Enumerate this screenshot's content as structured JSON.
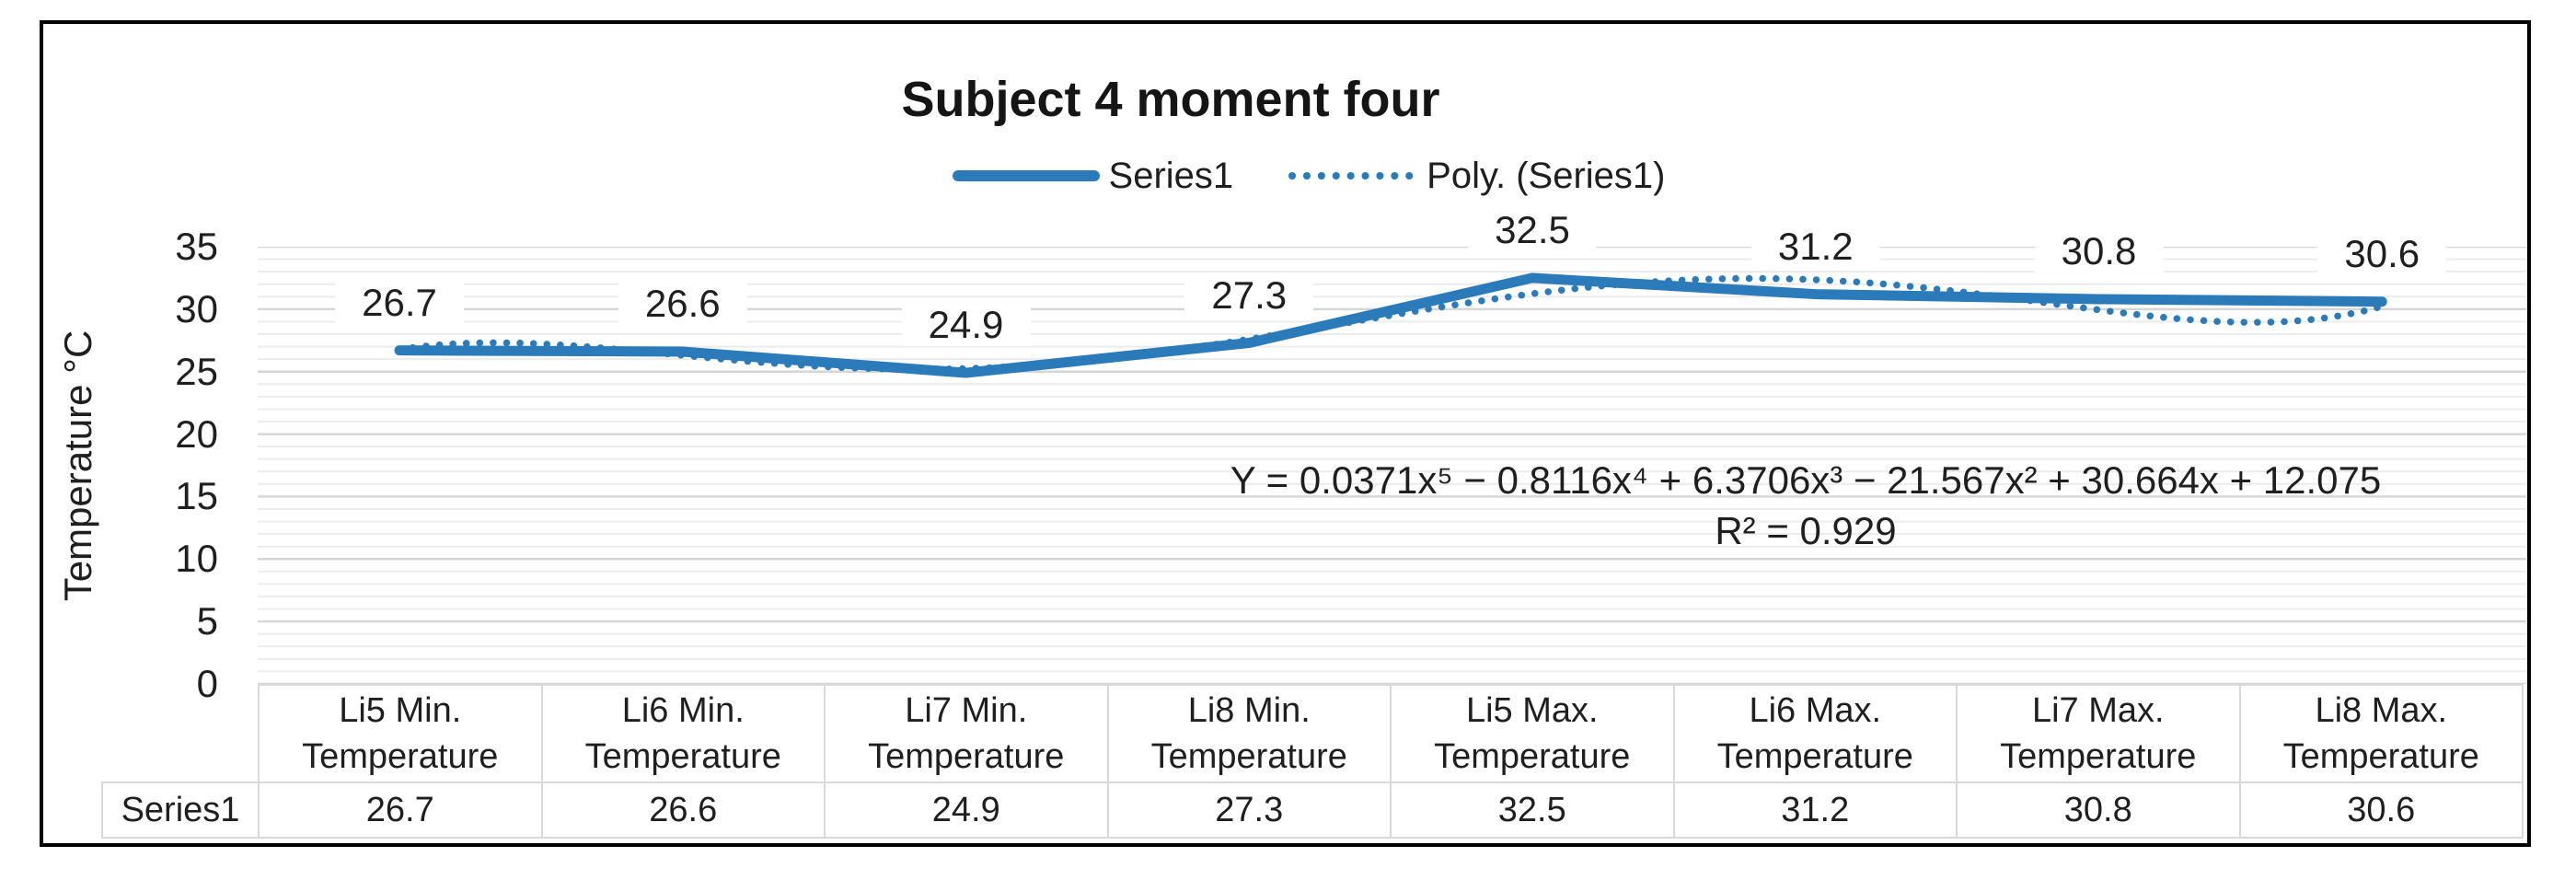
{
  "chart": {
    "title": "Subject 4 moment four",
    "y_axis": {
      "title": "Temperature °C",
      "tick_labels": [
        "35",
        "30",
        "25",
        "20",
        "15",
        "10",
        "5",
        "0"
      ],
      "min": 0,
      "max": 35,
      "major_unit": 5,
      "minor_unit": 1
    },
    "annotation": {
      "equation": "Y = 0.0371x⁵ − 0.8116x⁴ + 6.3706x³ − 21.567x² + 30.664x + 12.075",
      "r_squared": "R² = 0.929"
    },
    "colors": {
      "series_blue": "#2b7bba",
      "gridline_minor": "#ececec",
      "gridline_major": "#d6d6d6",
      "table_border": "#d9d9d9",
      "chart_border": "#000000"
    }
  },
  "chart_data": {
    "type": "line",
    "title": "Subject 4 moment four",
    "categories": [
      "Li5 Min. Temperature",
      "Li6 Min. Temperature",
      "Li7 Min. Temperature",
      "Li8 Min. Temperature",
      "Li5 Max. Temperature",
      "Li6 Max. Temperature",
      "Li7 Max. Temperature",
      "Li8 Max. Temperature"
    ],
    "series": [
      {
        "name": "Series1",
        "values": [
          26.7,
          26.6,
          24.9,
          27.3,
          32.5,
          31.2,
          30.8,
          30.6
        ]
      }
    ],
    "data_labels": [
      "26.7",
      "26.6",
      "24.9",
      "27.3",
      "32.5",
      "31.2",
      "30.8",
      "30.6"
    ],
    "trendline": {
      "name": "Poly. (Series1)",
      "type": "polynomial",
      "order": 5,
      "coefficients": [
        0.0371,
        -0.8116,
        6.3706,
        -21.567,
        30.664,
        12.075
      ],
      "r_squared": 0.929
    },
    "xlabel": "",
    "ylabel": "Temperature °C",
    "ylim": [
      0,
      35
    ],
    "grid": true,
    "legend_position": "top"
  },
  "table": {
    "row_header": "Series1",
    "columns": [
      "Li5 Min. Temperature",
      "Li6 Min. Temperature",
      "Li7 Min. Temperature",
      "Li8 Min. Temperature",
      "Li5 Max. Temperature",
      "Li6 Max. Temperature",
      "Li7 Max. Temperature",
      "Li8 Max. Temperature"
    ],
    "values": [
      "26.7",
      "26.6",
      "24.9",
      "27.3",
      "32.5",
      "31.2",
      "30.8",
      "30.6"
    ]
  }
}
